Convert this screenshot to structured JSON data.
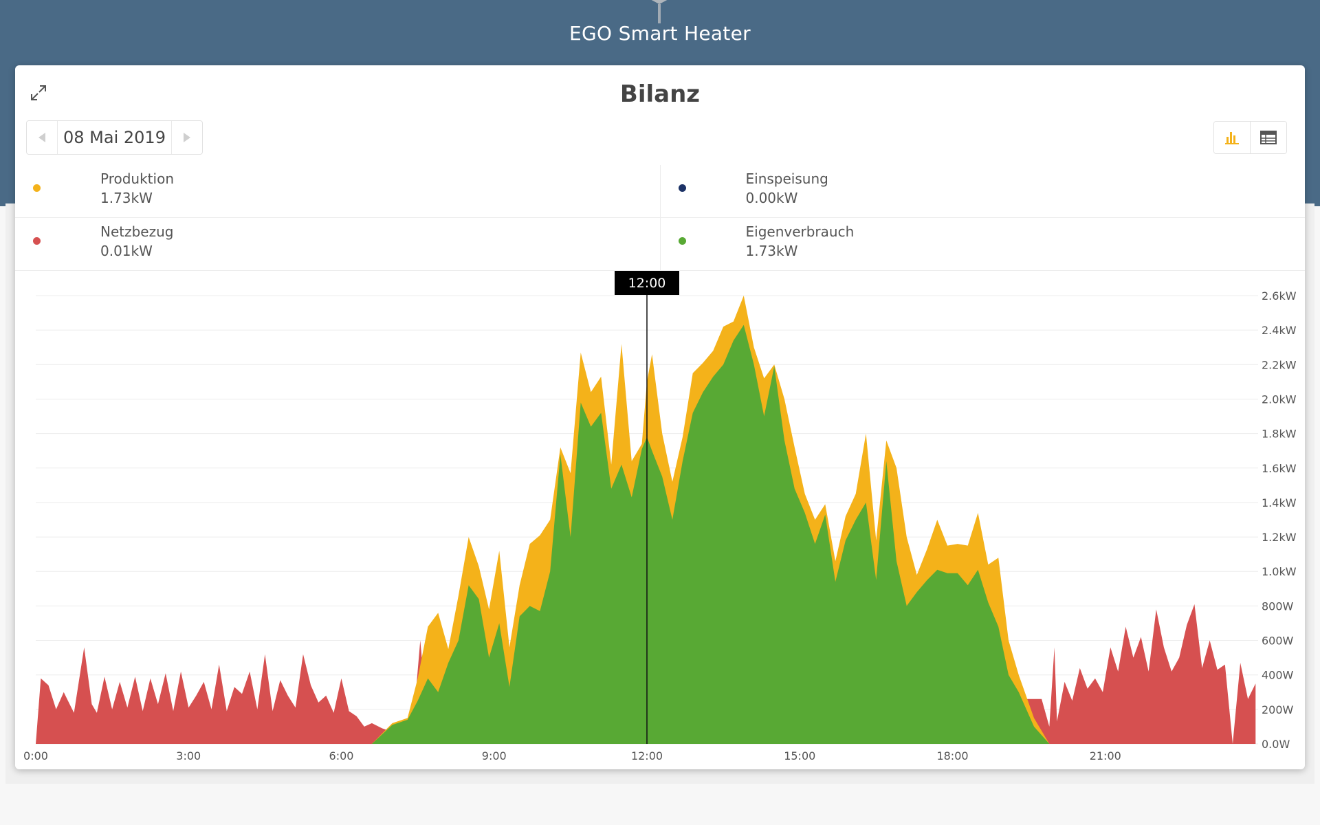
{
  "app": {
    "title": "EGO Smart Heater"
  },
  "card": {
    "title": "Bilanz",
    "date": "08 Mai 2019"
  },
  "icons": {
    "expand": "expand-icon",
    "prev": "chevron-left-icon",
    "next": "chevron-right-icon",
    "chart_view": "bar-chart-icon",
    "table_view": "table-icon"
  },
  "legend": [
    {
      "name": "Produktion",
      "value": "1.73kW",
      "color": "#f4b21a"
    },
    {
      "name": "Einspeisung",
      "value": "0.00kW",
      "color": "#1c3266"
    },
    {
      "name": "Netzbezug",
      "value": "0.01kW",
      "color": "#d65050"
    },
    {
      "name": "Eigenverbrauch",
      "value": "1.73kW",
      "color": "#58a934"
    }
  ],
  "chart_data": {
    "type": "area",
    "cursor": {
      "label": "12:00",
      "x_hours": 12
    },
    "x_ticks": [
      "0:00",
      "3:00",
      "6:00",
      "9:00",
      "12:00",
      "15:00",
      "18:00",
      "21:00"
    ],
    "y_ticks": [
      "0.0W",
      "200W",
      "400W",
      "600W",
      "800W",
      "1.0kW",
      "1.2kW",
      "1.4kW",
      "1.6kW",
      "1.8kW",
      "2.0kW",
      "2.2kW",
      "2.4kW",
      "2.6kW"
    ],
    "ylim_w": [
      0,
      2600
    ],
    "xlim_hours": [
      0,
      24
    ],
    "colors": {
      "produktion": "#f4b21a",
      "eigenverbrauch": "#58a934",
      "netzbezug": "#d65050"
    },
    "series": [
      {
        "name": "Produktion",
        "x_hours": [
          6.6,
          7.0,
          7.3,
          7.5,
          7.7,
          7.9,
          8.1,
          8.3,
          8.5,
          8.7,
          8.9,
          9.1,
          9.3,
          9.5,
          9.7,
          9.9,
          10.1,
          10.3,
          10.5,
          10.7,
          10.9,
          11.1,
          11.3,
          11.5,
          11.7,
          11.9,
          12.0,
          12.1,
          12.3,
          12.5,
          12.7,
          12.9,
          13.1,
          13.3,
          13.5,
          13.7,
          13.9,
          14.1,
          14.3,
          14.5,
          14.7,
          14.9,
          15.1,
          15.3,
          15.5,
          15.7,
          15.9,
          16.1,
          16.3,
          16.5,
          16.7,
          16.9,
          17.1,
          17.3,
          17.5,
          17.7,
          17.9,
          18.1,
          18.3,
          18.5,
          18.7,
          18.9,
          19.1,
          19.3,
          19.6,
          19.9
        ],
        "values_w": [
          0,
          120,
          150,
          380,
          680,
          760,
          550,
          860,
          1200,
          1030,
          780,
          1120,
          560,
          920,
          1160,
          1210,
          1300,
          1720,
          1570,
          2270,
          2040,
          2130,
          1620,
          2320,
          1640,
          1740,
          2100,
          2260,
          1800,
          1520,
          1780,
          2150,
          2210,
          2280,
          2420,
          2450,
          2600,
          2300,
          2120,
          2200,
          2000,
          1720,
          1450,
          1300,
          1390,
          1060,
          1320,
          1450,
          1800,
          1180,
          1760,
          1600,
          1200,
          980,
          1130,
          1300,
          1150,
          1160,
          1150,
          1340,
          1040,
          1080,
          600,
          400,
          150,
          0
        ]
      },
      {
        "name": "Eigenverbrauch",
        "x_hours": [
          6.6,
          7.0,
          7.3,
          7.5,
          7.7,
          7.9,
          8.1,
          8.3,
          8.5,
          8.7,
          8.9,
          9.1,
          9.3,
          9.5,
          9.7,
          9.9,
          10.1,
          10.3,
          10.5,
          10.7,
          10.9,
          11.1,
          11.3,
          11.5,
          11.7,
          11.9,
          12.0,
          12.1,
          12.3,
          12.5,
          12.7,
          12.9,
          13.1,
          13.3,
          13.5,
          13.7,
          13.9,
          14.1,
          14.3,
          14.5,
          14.7,
          14.9,
          15.1,
          15.3,
          15.5,
          15.7,
          15.9,
          16.1,
          16.3,
          16.5,
          16.7,
          16.9,
          17.1,
          17.3,
          17.5,
          17.7,
          17.9,
          18.1,
          18.3,
          18.5,
          18.7,
          18.9,
          19.1,
          19.3,
          19.6,
          19.9
        ],
        "values_w": [
          0,
          110,
          140,
          250,
          380,
          300,
          470,
          600,
          920,
          840,
          500,
          700,
          330,
          740,
          800,
          770,
          1000,
          1680,
          1200,
          1980,
          1840,
          1920,
          1480,
          1620,
          1430,
          1710,
          1780,
          1700,
          1550,
          1300,
          1640,
          1920,
          2040,
          2130,
          2200,
          2340,
          2430,
          2200,
          1900,
          2190,
          1760,
          1480,
          1340,
          1160,
          1330,
          940,
          1180,
          1300,
          1400,
          950,
          1640,
          1060,
          800,
          880,
          950,
          1010,
          990,
          990,
          920,
          1010,
          820,
          680,
          400,
          300,
          100,
          0
        ]
      },
      {
        "name": "Netzbezug",
        "x_hours": [
          0.0,
          0.1,
          0.25,
          0.4,
          0.55,
          0.75,
          0.95,
          1.1,
          1.2,
          1.35,
          1.5,
          1.65,
          1.8,
          1.95,
          2.1,
          2.25,
          2.4,
          2.55,
          2.7,
          2.85,
          3.0,
          3.15,
          3.3,
          3.45,
          3.6,
          3.75,
          3.9,
          4.05,
          4.2,
          4.35,
          4.5,
          4.65,
          4.8,
          4.95,
          5.1,
          5.25,
          5.4,
          5.55,
          5.7,
          5.85,
          6.0,
          6.15,
          6.3,
          6.45,
          6.6,
          6.8,
          7.0,
          7.2,
          7.4,
          7.55,
          7.65,
          19.75,
          19.9,
          20.0,
          20.05,
          20.2,
          20.35,
          20.5,
          20.65,
          20.8,
          20.95,
          21.1,
          21.25,
          21.4,
          21.55,
          21.7,
          21.85,
          22.0,
          22.15,
          22.3,
          22.45,
          22.6,
          22.75,
          22.9,
          23.05,
          23.2,
          23.35,
          23.5,
          23.65,
          23.8,
          23.95
        ],
        "values_w": [
          0,
          380,
          340,
          200,
          300,
          180,
          560,
          230,
          180,
          390,
          200,
          360,
          210,
          390,
          190,
          380,
          230,
          410,
          190,
          420,
          210,
          280,
          360,
          200,
          460,
          190,
          330,
          290,
          420,
          200,
          520,
          190,
          370,
          280,
          210,
          520,
          340,
          240,
          280,
          180,
          380,
          190,
          160,
          100,
          120,
          90,
          70,
          110,
          80,
          600,
          260,
          260,
          100,
          560,
          130,
          360,
          250,
          440,
          320,
          380,
          300,
          560,
          420,
          680,
          500,
          620,
          420,
          780,
          560,
          420,
          500,
          690,
          810,
          440,
          600,
          430,
          460,
          0,
          470,
          260,
          350
        ]
      }
    ]
  }
}
